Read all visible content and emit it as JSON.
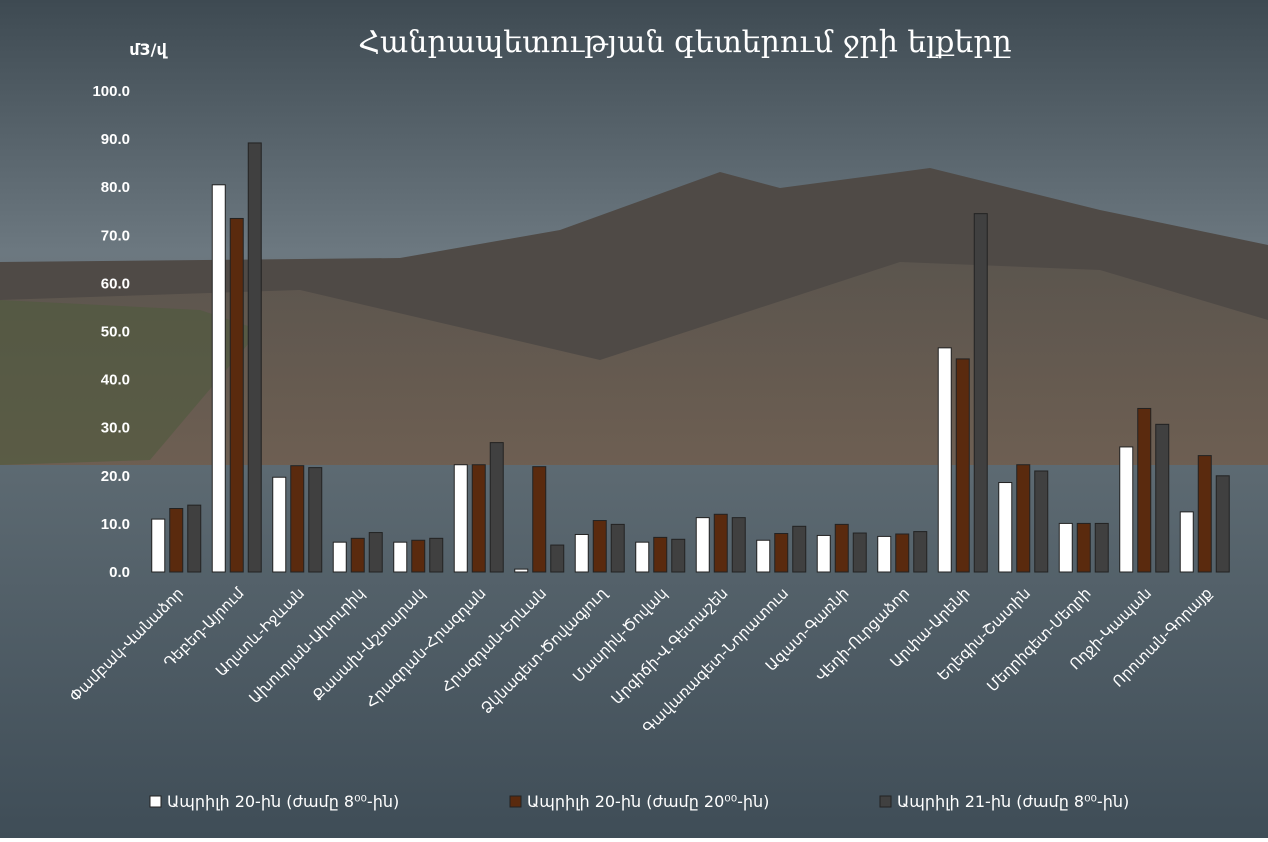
{
  "chart_data": {
    "type": "bar",
    "title": "Հանրապետության գետերում ջրի ելքերը",
    "y_label": "մ3/վ",
    "categories": [
      "Փամբակ-Վանաձոր",
      "Դեբեդ-Այրում",
      "Աղստև-Իջևան",
      "Ախուրյան-Ախուրիկ",
      "Քասախ-Աշտարակ",
      "Հրազդան-Հրազդան",
      "Հրազդան-Երևան",
      "Ձկնագետ-Ծովագյուղ",
      "Մասրիկ-Ծովակ",
      "Արգիճի-Վ.Գետաշեն",
      "Գավառագետ-Նորատուս",
      "Ազատ-Գառնի",
      "Վեդի-Ուրցաձոր",
      "Արփա-Արենի",
      "Եղեգիս-Շատին",
      "Մեղրիգետ-Մեղրի",
      "Ողջի-Կապան",
      "Որոտան-Գորայք"
    ],
    "series": [
      {
        "name": "Ապրիլի 20-ին (ժամը 8⁰⁰-ին)",
        "color": "#ffffff",
        "values": [
          11.0,
          80.5,
          19.7,
          6.2,
          6.2,
          22.3,
          0.6,
          7.8,
          6.2,
          11.3,
          6.6,
          7.6,
          7.4,
          46.6,
          18.6,
          10.1,
          26.0,
          12.5
        ]
      },
      {
        "name": "Ապրիլի 20-ին (ժամը 20⁰⁰-ին)",
        "color": "#5a2a0e",
        "values": [
          13.2,
          73.5,
          22.1,
          7.0,
          6.6,
          22.3,
          21.9,
          10.7,
          7.2,
          12.0,
          8.0,
          9.9,
          7.9,
          44.3,
          22.3,
          10.1,
          34.0,
          24.2
        ]
      },
      {
        "name": "Ապրիլի 21-ին (ժամը 8⁰⁰-ին)",
        "color": "#404040",
        "values": [
          13.9,
          89.2,
          21.7,
          8.2,
          7.0,
          26.9,
          5.6,
          9.9,
          6.8,
          11.3,
          9.5,
          8.1,
          8.4,
          74.5,
          21.0,
          10.1,
          30.7,
          20.0
        ]
      }
    ],
    "ylim": [
      0,
      100
    ],
    "yticks": [
      {
        "value": 0,
        "label": "0.0"
      },
      {
        "value": 10,
        "label": "10.0"
      },
      {
        "value": 20,
        "label": "20.0"
      },
      {
        "value": 30,
        "label": "30.0"
      },
      {
        "value": 40,
        "label": "40.0"
      },
      {
        "value": 50,
        "label": "50.0"
      },
      {
        "value": 60,
        "label": "60.0"
      },
      {
        "value": 70,
        "label": "70.0"
      },
      {
        "value": 80,
        "label": "80.0"
      },
      {
        "value": 90,
        "label": "90.0"
      },
      {
        "value": 100,
        "label": "100.0"
      }
    ]
  }
}
